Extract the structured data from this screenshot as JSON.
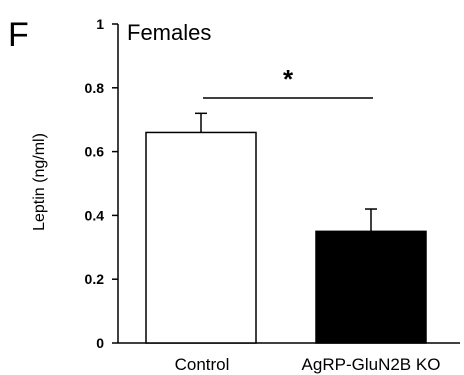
{
  "panel_label": "F",
  "chart_data": {
    "type": "bar",
    "title": "Females",
    "ylabel": "Leptin (ng/ml)",
    "xlabel": "",
    "ylim": [
      0,
      1
    ],
    "yticks": [
      "0",
      "0.2",
      "0.4",
      "0.6",
      "0.8",
      "1"
    ],
    "categories": [
      "Control",
      "AgRP-GluN2B KO"
    ],
    "values": [
      0.66,
      0.35
    ],
    "errors": [
      0.06,
      0.07
    ],
    "bar_colors": [
      "#ffffff",
      "#000000"
    ],
    "significance": "*"
  }
}
